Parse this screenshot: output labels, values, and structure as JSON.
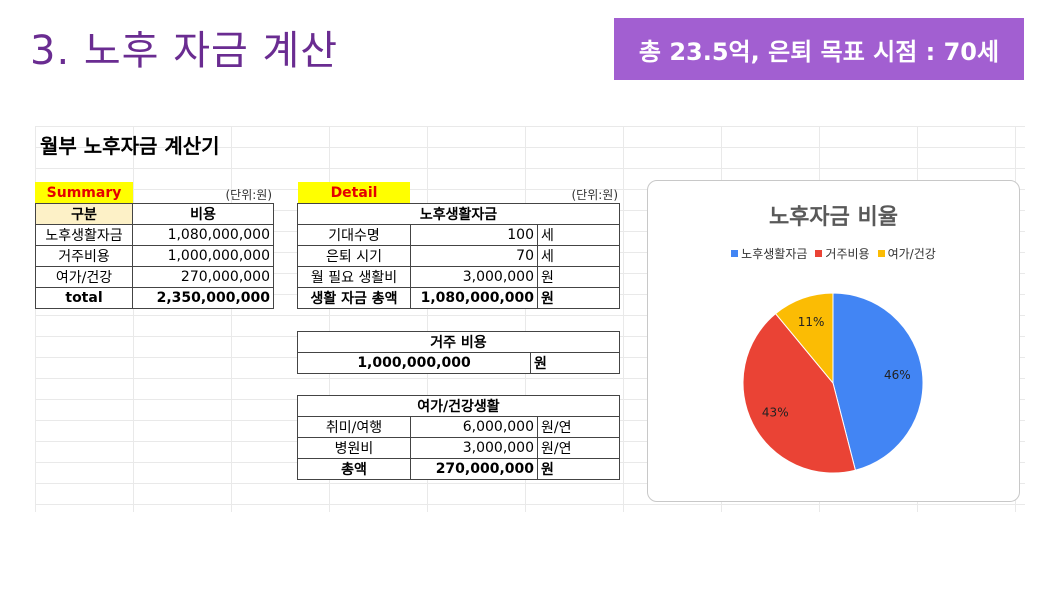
{
  "slide": {
    "title": "3. 노후 자금 계산",
    "badge": "총 23.5억, 은퇴 목표 시점 : 70세"
  },
  "sheet": {
    "title": "월부 노후자금 계산기",
    "summary": {
      "label": "Summary",
      "unit": "(단위:원)",
      "headers": [
        "구분",
        "비용"
      ],
      "rows": [
        {
          "name": "노후생활자금",
          "value": "1,080,000,000"
        },
        {
          "name": "거주비용",
          "value": "1,000,000,000"
        },
        {
          "name": "여가/건강",
          "value": "270,000,000"
        }
      ],
      "total": {
        "name": "total",
        "value": "2,350,000,000"
      }
    },
    "detail": {
      "label": "Detail",
      "unit": "(단위:원)",
      "living": {
        "header": "노후생활자금",
        "rows": [
          {
            "name": "기대수명",
            "value": "100",
            "unit": "세"
          },
          {
            "name": "은퇴 시기",
            "value": "70",
            "unit": "세"
          },
          {
            "name": "월 필요 생활비",
            "value": "3,000,000",
            "unit": "원"
          }
        ],
        "total": {
          "name": "생활 자금 총액",
          "value": "1,080,000,000",
          "unit": "원"
        }
      },
      "housing": {
        "header": "거주 비용",
        "value": "1,000,000,000",
        "unit": "원"
      },
      "leisure": {
        "header": "여가/건강생활",
        "rows": [
          {
            "name": "취미/여행",
            "value": "6,000,000",
            "unit": "원/연"
          },
          {
            "name": "병원비",
            "value": "3,000,000",
            "unit": "원/연"
          }
        ],
        "total": {
          "name": "총액",
          "value": "270,000,000",
          "unit": "원"
        }
      }
    }
  },
  "chart_data": {
    "type": "pie",
    "title": "노후자금 비율",
    "categories": [
      "노후생활자금",
      "거주비용",
      "여가/건강"
    ],
    "values": [
      46,
      43,
      11
    ],
    "labels": [
      "46%",
      "43%",
      "11%"
    ],
    "colors": [
      "#4285f4",
      "#ea4335",
      "#fbbc04"
    ],
    "legend": "top"
  }
}
